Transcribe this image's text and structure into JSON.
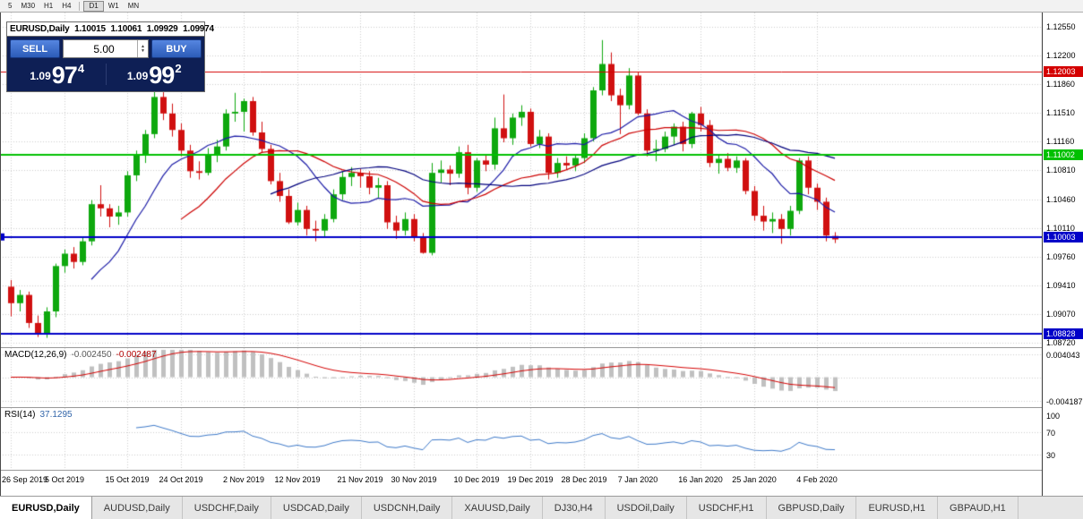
{
  "toolbar": {
    "timeframes": [
      "5",
      "M30",
      "H1",
      "H4",
      "D1",
      "W1",
      "MN"
    ],
    "active": "D1"
  },
  "chart": {
    "title": "EURUSD,Daily",
    "ohlc": {
      "open": "1.10015",
      "high": "1.10061",
      "low": "1.09929",
      "close": "1.09974"
    },
    "trade_panel": {
      "sell_label": "SELL",
      "buy_label": "BUY",
      "volume": "5.00",
      "sell_price_prefix": "1.09",
      "sell_price_big": "97",
      "sell_price_sup": "4",
      "buy_price_prefix": "1.09",
      "buy_price_big": "99",
      "buy_price_sup": "2"
    }
  },
  "macd_panel": {
    "name": "MACD(12,26,9)",
    "value": "-0.002450",
    "signal_value": "-0.002487"
  },
  "rsi_panel": {
    "name": "RSI(14)",
    "value": "37.1295"
  },
  "tabs": {
    "active_index": 0,
    "items": [
      "EURUSD,Daily",
      "AUDUSD,Daily",
      "USDCHF,Daily",
      "USDCAD,Daily",
      "USDCNH,Daily",
      "XAUUSD,Daily",
      "DJ30,H4",
      "USDOil,Daily",
      "USDCHF,H1",
      "GBPUSD,Daily",
      "EURUSD,H1",
      "GBPAUD,H1"
    ]
  },
  "chart_data": {
    "type": "candlestick",
    "symbol": "EURUSD",
    "timeframe": "Daily",
    "colors": {
      "up": "#0ea80e",
      "down": "#d01010"
    },
    "y_axis": {
      "labels": [
        "1.12550",
        "1.12200",
        "1.11860",
        "1.11510",
        "1.11160",
        "1.10810",
        "1.10460",
        "1.10110",
        "1.09760",
        "1.09410",
        "1.09070",
        "1.08720"
      ],
      "range": [
        1.0867,
        1.1268
      ]
    },
    "x_axis": {
      "labels": [
        "26 Sep 2019",
        "5 Oct 2019",
        "15 Oct 2019",
        "24 Oct 2019",
        "2 Nov 2019",
        "12 Nov 2019",
        "21 Nov 2019",
        "30 Nov 2019",
        "10 Dec 2019",
        "19 Dec 2019",
        "28 Dec 2019",
        "7 Jan 2020",
        "16 Jan 2020",
        "25 Jan 2020",
        "4 Feb 2020"
      ],
      "candle_indices": [
        0,
        6,
        13,
        19,
        26,
        32,
        39,
        45,
        52,
        58,
        64,
        70,
        77,
        83,
        90
      ]
    },
    "levels": [
      {
        "price": 1.12003,
        "label": "1.12003",
        "color": "#d40000",
        "line_width": 1
      },
      {
        "price": 1.11002,
        "label": "1.11002",
        "color": "#00c000",
        "line_width": 2
      },
      {
        "price": 1.10003,
        "label": "1.10003",
        "color": "#0000c8",
        "line_width": 2,
        "anchor": true
      },
      {
        "price": 1.08828,
        "label": "1.08828",
        "color": "#0000c8",
        "line_width": 2
      }
    ],
    "indicators": {
      "moving_averages": [
        {
          "type": "SMA",
          "period": 10,
          "color": "#1a1aa6"
        },
        {
          "type": "SMA",
          "period": 20,
          "color": "#cc0000"
        },
        {
          "type": "SMA",
          "period": 30,
          "color": "#00007d"
        }
      ],
      "macd": {
        "fast": 12,
        "slow": 26,
        "signal": 9,
        "histogram_color": "#c0c0c0",
        "signal_color": "#d40000",
        "axis_labels": [
          "0.004043",
          "-0.004187"
        ]
      },
      "rsi": {
        "period": 14,
        "color": "#3c78c8",
        "levels": [
          70,
          30
        ],
        "axis_labels": [
          "100",
          "70",
          "30"
        ]
      }
    },
    "candles": [
      [
        1.094,
        1.0948,
        1.0904,
        1.092
      ],
      [
        1.092,
        1.0936,
        1.091,
        1.093
      ],
      [
        1.093,
        1.0934,
        1.089,
        1.0896
      ],
      [
        1.0896,
        1.0905,
        1.0879,
        1.0882
      ],
      [
        1.0882,
        1.0915,
        1.0878,
        1.091
      ],
      [
        1.091,
        1.0968,
        1.0903,
        1.0965
      ],
      [
        1.0965,
        1.0985,
        1.0957,
        1.098
      ],
      [
        1.098,
        1.0988,
        1.0962,
        1.097
      ],
      [
        1.097,
        1.1,
        1.0966,
        1.0995
      ],
      [
        1.0995,
        1.1045,
        1.099,
        1.104
      ],
      [
        1.104,
        1.1063,
        1.1025,
        1.1035
      ],
      [
        1.1035,
        1.104,
        1.1012,
        1.1025
      ],
      [
        1.1025,
        1.1038,
        1.1015,
        1.103
      ],
      [
        1.103,
        1.108,
        1.1025,
        1.1075
      ],
      [
        1.1075,
        1.1105,
        1.1068,
        1.11
      ],
      [
        1.11,
        1.113,
        1.109,
        1.1125
      ],
      [
        1.1125,
        1.118,
        1.112,
        1.117
      ],
      [
        1.117,
        1.1176,
        1.1142,
        1.115
      ],
      [
        1.115,
        1.1162,
        1.1122,
        1.113
      ],
      [
        1.113,
        1.1138,
        1.1098,
        1.1105
      ],
      [
        1.1105,
        1.1112,
        1.1072,
        1.108
      ],
      [
        1.108,
        1.1092,
        1.107,
        1.1078
      ],
      [
        1.1078,
        1.1108,
        1.1075,
        1.11
      ],
      [
        1.11,
        1.1118,
        1.1091,
        1.111
      ],
      [
        1.111,
        1.1155,
        1.1105,
        1.115
      ],
      [
        1.115,
        1.1175,
        1.114,
        1.1152
      ],
      [
        1.1152,
        1.1168,
        1.1128,
        1.1165
      ],
      [
        1.1165,
        1.117,
        1.1123,
        1.1127
      ],
      [
        1.1127,
        1.114,
        1.1102,
        1.1107
      ],
      [
        1.1107,
        1.1112,
        1.1064,
        1.1068
      ],
      [
        1.1068,
        1.1078,
        1.1043,
        1.105
      ],
      [
        1.105,
        1.1058,
        1.1016,
        1.1018
      ],
      [
        1.1018,
        1.1042,
        1.1014,
        1.1033
      ],
      [
        1.1033,
        1.1038,
        1.1002,
        1.101
      ],
      [
        1.101,
        1.102,
        1.0995,
        1.1008
      ],
      [
        1.1008,
        1.1028,
        1.1,
        1.1022
      ],
      [
        1.1022,
        1.1058,
        1.1018,
        1.1052
      ],
      [
        1.1052,
        1.108,
        1.1045,
        1.1073
      ],
      [
        1.1073,
        1.1085,
        1.1062,
        1.1078
      ],
      [
        1.1078,
        1.1083,
        1.106,
        1.1074
      ],
      [
        1.1074,
        1.108,
        1.1052,
        1.106
      ],
      [
        1.106,
        1.1072,
        1.1048,
        1.1063
      ],
      [
        1.1063,
        1.1068,
        1.101,
        1.1018
      ],
      [
        1.1018,
        1.1026,
        1.0998,
        1.1008
      ],
      [
        1.1008,
        1.103,
        1.1002,
        1.1022
      ],
      [
        1.1022,
        1.1028,
        1.0995,
        1.1
      ],
      [
        1.1,
        1.1005,
        1.098,
        1.0981
      ],
      [
        1.0981,
        1.109,
        1.0978,
        1.1078
      ],
      [
        1.1078,
        1.1093,
        1.1066,
        1.1082
      ],
      [
        1.1082,
        1.1087,
        1.1063,
        1.1077
      ],
      [
        1.1077,
        1.111,
        1.1072,
        1.1103
      ],
      [
        1.1103,
        1.1112,
        1.1052,
        1.106
      ],
      [
        1.106,
        1.1096,
        1.1055,
        1.1093
      ],
      [
        1.1093,
        1.11,
        1.108,
        1.1088
      ],
      [
        1.1088,
        1.1145,
        1.1082,
        1.1132
      ],
      [
        1.1132,
        1.1173,
        1.1115,
        1.112
      ],
      [
        1.112,
        1.115,
        1.1112,
        1.1145
      ],
      [
        1.1145,
        1.116,
        1.1135,
        1.1152
      ],
      [
        1.1152,
        1.1156,
        1.111,
        1.1113
      ],
      [
        1.1113,
        1.113,
        1.1108,
        1.1122
      ],
      [
        1.1122,
        1.1126,
        1.107,
        1.1078
      ],
      [
        1.1078,
        1.1096,
        1.1072,
        1.109
      ],
      [
        1.109,
        1.1098,
        1.1082,
        1.1087
      ],
      [
        1.1087,
        1.11,
        1.108,
        1.1096
      ],
      [
        1.1096,
        1.1126,
        1.109,
        1.112
      ],
      [
        1.112,
        1.1182,
        1.1116,
        1.1178
      ],
      [
        1.1178,
        1.1239,
        1.1172,
        1.121
      ],
      [
        1.121,
        1.1224,
        1.1165,
        1.1172
      ],
      [
        1.1172,
        1.118,
        1.1125,
        1.116
      ],
      [
        1.116,
        1.1205,
        1.1155,
        1.1196
      ],
      [
        1.1196,
        1.12,
        1.1148,
        1.115
      ],
      [
        1.115,
        1.1155,
        1.1098,
        1.1105
      ],
      [
        1.1105,
        1.1118,
        1.1092,
        1.1107
      ],
      [
        1.1107,
        1.1128,
        1.1103,
        1.1122
      ],
      [
        1.1122,
        1.1138,
        1.1112,
        1.1134
      ],
      [
        1.1134,
        1.114,
        1.1104,
        1.1113
      ],
      [
        1.1113,
        1.1152,
        1.1108,
        1.115
      ],
      [
        1.115,
        1.1158,
        1.1128,
        1.1136
      ],
      [
        1.1136,
        1.1142,
        1.1085,
        1.109
      ],
      [
        1.109,
        1.11,
        1.1077,
        1.1095
      ],
      [
        1.1095,
        1.1102,
        1.108,
        1.1084
      ],
      [
        1.1084,
        1.1098,
        1.1078,
        1.1093
      ],
      [
        1.1093,
        1.1096,
        1.1052,
        1.1056
      ],
      [
        1.1056,
        1.1062,
        1.102,
        1.1026
      ],
      [
        1.1026,
        1.1038,
        1.1008,
        1.1019
      ],
      [
        1.1019,
        1.103,
        1.1005,
        1.1022
      ],
      [
        1.1022,
        1.1028,
        1.0992,
        1.101
      ],
      [
        1.101,
        1.1038,
        1.1002,
        1.1032
      ],
      [
        1.1032,
        1.1096,
        1.1028,
        1.1093
      ],
      [
        1.1093,
        1.1098,
        1.1052,
        1.106
      ],
      [
        1.106,
        1.1065,
        1.1033,
        1.1043
      ],
      [
        1.1043,
        1.1048,
        1.0995,
        1.1002
      ],
      [
        1.10015,
        1.10061,
        1.09929,
        1.09974
      ]
    ]
  }
}
